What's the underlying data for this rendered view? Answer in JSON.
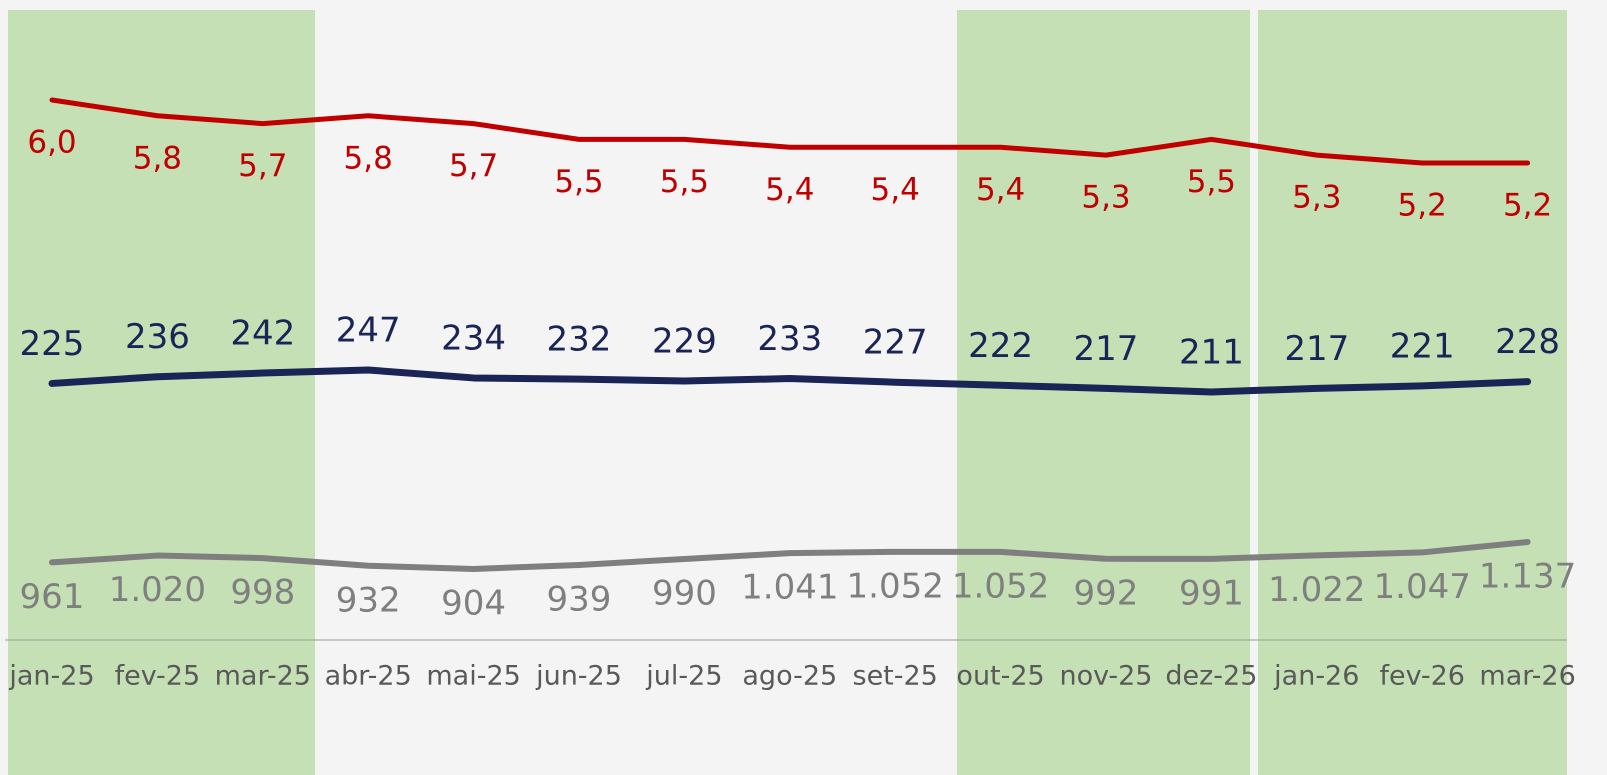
{
  "chart_data": {
    "type": "line",
    "categories": [
      "jan-25",
      "fev-25",
      "mar-25",
      "abr-25",
      "mai-25",
      "jun-25",
      "jul-25",
      "ago-25",
      "set-25",
      "out-25",
      "nov-25",
      "dez-25",
      "jan-26",
      "fev-26",
      "mar-26"
    ],
    "series": [
      {
        "color": "#c00000",
        "values": [
          6.0,
          5.8,
          5.7,
          5.8,
          5.7,
          5.5,
          5.5,
          5.4,
          5.4,
          5.4,
          5.3,
          5.5,
          5.3,
          5.2,
          5.2
        ],
        "value_labels": [
          "6,0",
          "5,8",
          "5,7",
          "5,8",
          "5,7",
          "5,5",
          "5,5",
          "5,4",
          "5,4",
          "5,4",
          "5,3",
          "5,5",
          "5,3",
          "5,2",
          "5,2"
        ]
      },
      {
        "color": "#1a2456",
        "values": [
          225,
          236,
          242,
          247,
          234,
          232,
          229,
          233,
          227,
          222,
          217,
          211,
          217,
          221,
          228
        ]
      },
      {
        "color": "#7f7f7f",
        "values": [
          961,
          1020,
          998,
          932,
          904,
          939,
          990,
          1041,
          1052,
          1052,
          992,
          991,
          1022,
          1047,
          1137
        ],
        "value_labels": [
          "961",
          "1.020",
          "998",
          "932",
          "904",
          "939",
          "990",
          "1.041",
          "1.052",
          "1.052",
          "992",
          "991",
          "1.022",
          "1.047",
          "1.137"
        ]
      }
    ]
  }
}
